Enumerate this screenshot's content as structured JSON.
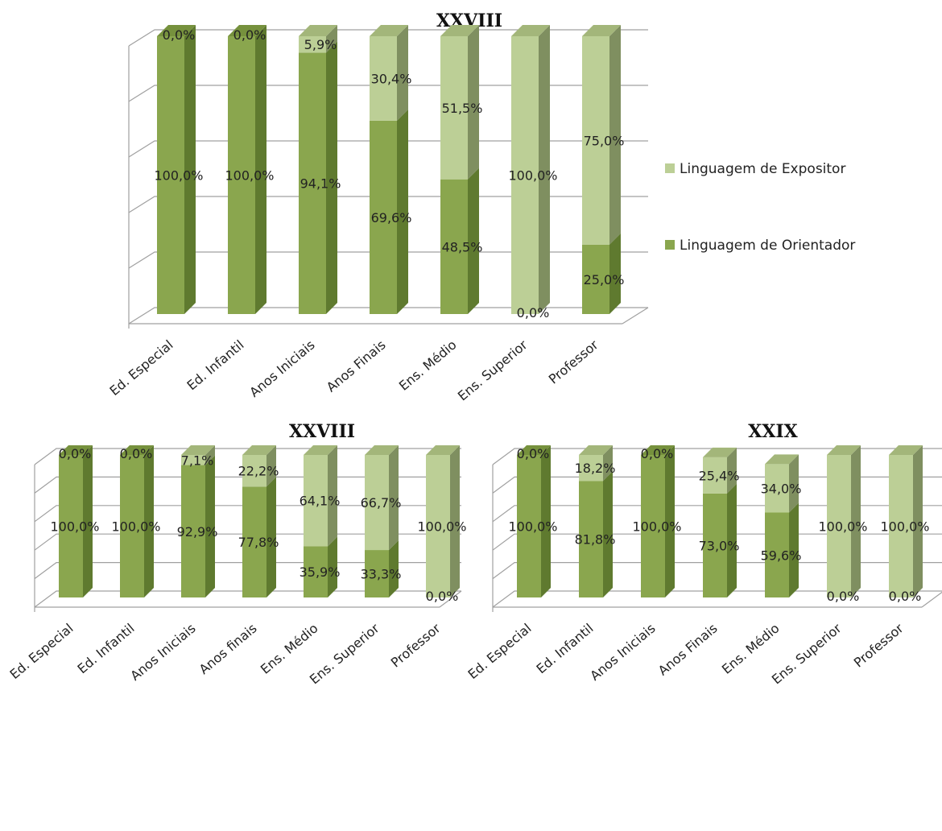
{
  "colors": {
    "orientador": "#8aa64e",
    "orientador_side": "#5f7a2f",
    "orientador_top": "#76913d",
    "expositor": "#bccf96",
    "expositor_side": "#7f8f60",
    "expositor_top": "#a3b67a",
    "grid": "#a0a0a0"
  },
  "chart_data": [
    {
      "type": "bar",
      "stacked": true,
      "percent": true,
      "title": "XXVIII",
      "categories": [
        "Ed. Especial",
        "Ed. Infantil",
        "Anos Iniciais",
        "Anos Finais",
        "Ens. Médio",
        "Ens. Superior",
        "Professor"
      ],
      "series": [
        {
          "name": "Linguagem de Orientador",
          "values": [
            100.0,
            100.0,
            94.1,
            69.6,
            48.5,
            0.0,
            25.0
          ],
          "labels": [
            "100,0%",
            "100,0%",
            "94,1%",
            "69,6%",
            "48,5%",
            "0,0%",
            "25,0%"
          ]
        },
        {
          "name": "Linguagem de Expositor",
          "values": [
            0.0,
            0.0,
            5.9,
            30.4,
            51.5,
            100.0,
            75.0
          ],
          "labels": [
            "0,0%",
            "0,0%",
            "5,9%",
            "30,4%",
            "51,5%",
            "100,0%",
            "75,0%"
          ]
        }
      ],
      "ylim": [
        0,
        100
      ],
      "grid": true,
      "legend": "right"
    },
    {
      "type": "bar",
      "stacked": true,
      "percent": true,
      "title": "XXVIII",
      "categories": [
        "Ed. Especial",
        "Ed. Infantil",
        "Anos Iniciais",
        "Anos finais",
        "Ens. Médio",
        "Ens. Superior",
        "Professor"
      ],
      "series": [
        {
          "name": "Linguagem de Orientador",
          "values": [
            100.0,
            100.0,
            92.9,
            77.8,
            35.9,
            33.3,
            0.0
          ],
          "labels": [
            "100,0%",
            "100,0%",
            "92,9%",
            "77,8%",
            "35,9%",
            "33,3%",
            "0,0%"
          ]
        },
        {
          "name": "Linguagem de Expositor",
          "values": [
            0.0,
            0.0,
            7.1,
            22.2,
            64.1,
            66.7,
            100.0
          ],
          "labels": [
            "0,0%",
            "0,0%",
            "7,1%",
            "22,2%",
            "64,1%",
            "66,7%",
            "100,0%"
          ]
        }
      ],
      "ylim": [
        0,
        100
      ],
      "grid": true,
      "legend": "none"
    },
    {
      "type": "bar",
      "stacked": true,
      "percent": true,
      "title": "XXIX",
      "categories": [
        "Ed. Especial",
        "Ed. Infantil",
        "Anos Iniciais",
        "Anos Finais",
        "Ens. Médio",
        "Ens. Superior",
        "Professor"
      ],
      "series": [
        {
          "name": "Linguagem de Orientador",
          "values": [
            100.0,
            81.8,
            100.0,
            73.0,
            59.6,
            0.0,
            0.0
          ],
          "labels": [
            "100,0%",
            "81,8%",
            "100,0%",
            "73,0%",
            "59,6%",
            "0,0%",
            "0,0%"
          ]
        },
        {
          "name": "Linguagem de Expositor",
          "values": [
            0.0,
            18.2,
            0.0,
            25.4,
            34.0,
            100.0,
            100.0
          ],
          "labels": [
            "0,0%",
            "18,2%",
            "0,0%",
            "25,4%",
            "34,0%",
            "100,0%",
            "100,0%"
          ]
        }
      ],
      "ylim": [
        0,
        100
      ],
      "grid": true,
      "legend": "none"
    }
  ]
}
